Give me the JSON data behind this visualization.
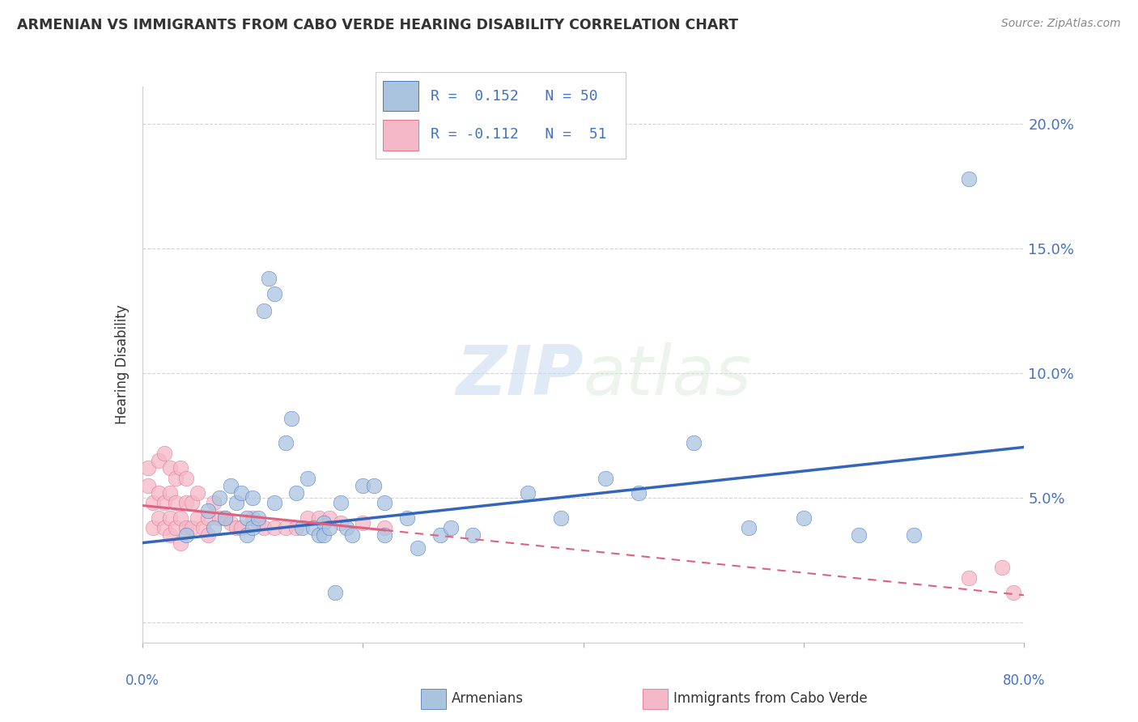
{
  "title": "ARMENIAN VS IMMIGRANTS FROM CABO VERDE HEARING DISABILITY CORRELATION CHART",
  "source": "Source: ZipAtlas.com",
  "ylabel": "Hearing Disability",
  "watermark_zip": "ZIP",
  "watermark_atlas": "atlas",
  "armenian_R": 0.152,
  "armenian_N": 50,
  "caboverde_R": -0.112,
  "caboverde_N": 51,
  "xlim": [
    0.0,
    0.8
  ],
  "ylim": [
    -0.008,
    0.215
  ],
  "yticks": [
    0.0,
    0.05,
    0.1,
    0.15,
    0.2
  ],
  "ytick_labels_right": [
    "",
    "5.0%",
    "10.0%",
    "15.0%",
    "20.0%"
  ],
  "armenian_color": "#aac4e0",
  "armenian_line_color": "#3366bb",
  "caboverde_color": "#f5b8c8",
  "caboverde_line_color": "#e06080",
  "armenian_x": [
    0.04,
    0.06,
    0.065,
    0.07,
    0.075,
    0.08,
    0.085,
    0.09,
    0.095,
    0.095,
    0.1,
    0.1,
    0.105,
    0.11,
    0.115,
    0.12,
    0.12,
    0.13,
    0.135,
    0.14,
    0.145,
    0.15,
    0.155,
    0.16,
    0.165,
    0.165,
    0.17,
    0.175,
    0.18,
    0.185,
    0.19,
    0.2,
    0.21,
    0.22,
    0.24,
    0.27,
    0.3,
    0.35,
    0.38,
    0.42,
    0.45,
    0.5,
    0.55,
    0.6,
    0.65,
    0.7,
    0.75,
    0.22,
    0.25,
    0.28
  ],
  "armenian_y": [
    0.035,
    0.045,
    0.038,
    0.05,
    0.042,
    0.055,
    0.048,
    0.052,
    0.042,
    0.035,
    0.05,
    0.038,
    0.042,
    0.125,
    0.138,
    0.132,
    0.048,
    0.072,
    0.082,
    0.052,
    0.038,
    0.058,
    0.038,
    0.035,
    0.04,
    0.035,
    0.038,
    0.012,
    0.048,
    0.038,
    0.035,
    0.055,
    0.055,
    0.048,
    0.042,
    0.035,
    0.035,
    0.052,
    0.042,
    0.058,
    0.052,
    0.072,
    0.038,
    0.042,
    0.035,
    0.035,
    0.178,
    0.035,
    0.03,
    0.038
  ],
  "caboverde_x": [
    0.005,
    0.005,
    0.01,
    0.01,
    0.015,
    0.015,
    0.015,
    0.02,
    0.02,
    0.02,
    0.025,
    0.025,
    0.025,
    0.025,
    0.03,
    0.03,
    0.03,
    0.035,
    0.035,
    0.035,
    0.04,
    0.04,
    0.04,
    0.045,
    0.045,
    0.05,
    0.05,
    0.055,
    0.06,
    0.06,
    0.065,
    0.07,
    0.075,
    0.08,
    0.085,
    0.09,
    0.1,
    0.105,
    0.11,
    0.12,
    0.13,
    0.14,
    0.15,
    0.16,
    0.17,
    0.18,
    0.2,
    0.22,
    0.75,
    0.78,
    0.79
  ],
  "caboverde_y": [
    0.062,
    0.055,
    0.048,
    0.038,
    0.065,
    0.052,
    0.042,
    0.068,
    0.048,
    0.038,
    0.062,
    0.052,
    0.042,
    0.035,
    0.058,
    0.048,
    0.038,
    0.062,
    0.042,
    0.032,
    0.058,
    0.048,
    0.038,
    0.048,
    0.038,
    0.052,
    0.042,
    0.038,
    0.042,
    0.035,
    0.048,
    0.042,
    0.042,
    0.04,
    0.038,
    0.038,
    0.042,
    0.04,
    0.038,
    0.038,
    0.038,
    0.038,
    0.042,
    0.042,
    0.042,
    0.04,
    0.04,
    0.038,
    0.018,
    0.022,
    0.012
  ],
  "grid_color": "#d0d0d0",
  "axis_label_color": "#4472c4",
  "title_color": "#333333",
  "background_color": "#ffffff",
  "arm_line_intercept": 0.032,
  "arm_line_slope": 0.048,
  "cv_line_intercept": 0.047,
  "cv_line_slope": -0.045
}
